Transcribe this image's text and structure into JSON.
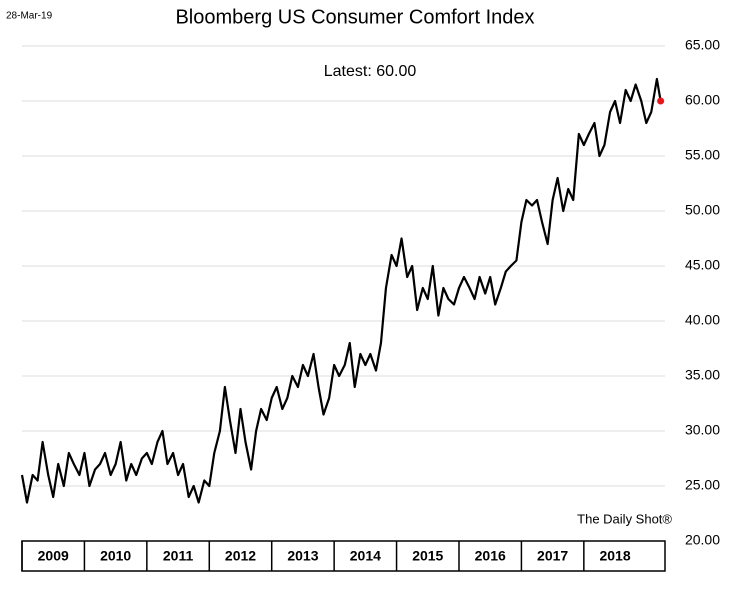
{
  "chart_data": {
    "type": "line",
    "title": "Bloomberg US Consumer Comfort Index",
    "date_label": "28-Mar-19",
    "annotation": "Latest:  60.00",
    "source": "The Daily Shot®",
    "x": [
      2009.0,
      2009.08,
      2009.17,
      2009.25,
      2009.33,
      2009.42,
      2009.5,
      2009.58,
      2009.67,
      2009.75,
      2009.83,
      2009.92,
      2010.0,
      2010.08,
      2010.17,
      2010.25,
      2010.33,
      2010.42,
      2010.5,
      2010.58,
      2010.67,
      2010.75,
      2010.83,
      2010.92,
      2011.0,
      2011.08,
      2011.17,
      2011.25,
      2011.33,
      2011.42,
      2011.5,
      2011.58,
      2011.67,
      2011.75,
      2011.83,
      2011.92,
      2012.0,
      2012.08,
      2012.17,
      2012.25,
      2012.33,
      2012.42,
      2012.5,
      2012.58,
      2012.67,
      2012.75,
      2012.83,
      2012.92,
      2013.0,
      2013.08,
      2013.17,
      2013.25,
      2013.33,
      2013.42,
      2013.5,
      2013.58,
      2013.67,
      2013.75,
      2013.83,
      2013.92,
      2014.0,
      2014.08,
      2014.17,
      2014.25,
      2014.33,
      2014.42,
      2014.5,
      2014.58,
      2014.67,
      2014.75,
      2014.83,
      2014.92,
      2015.0,
      2015.08,
      2015.17,
      2015.25,
      2015.33,
      2015.42,
      2015.5,
      2015.58,
      2015.67,
      2015.75,
      2015.83,
      2015.92,
      2016.0,
      2016.08,
      2016.17,
      2016.25,
      2016.33,
      2016.42,
      2016.5,
      2016.58,
      2016.67,
      2016.75,
      2016.83,
      2016.92,
      2017.0,
      2017.08,
      2017.17,
      2017.25,
      2017.33,
      2017.42,
      2017.5,
      2017.58,
      2017.67,
      2017.75,
      2017.83,
      2017.92,
      2018.0,
      2018.08,
      2018.17,
      2018.25,
      2018.33,
      2018.42,
      2018.5,
      2018.58,
      2018.67,
      2018.75,
      2018.83,
      2018.92,
      2019.0,
      2019.08,
      2019.17,
      2019.23
    ],
    "series": [
      {
        "color": "#000000",
        "values": [
          26,
          23.5,
          26,
          25.5,
          29,
          26,
          24,
          27,
          25,
          28,
          27,
          26,
          28,
          25,
          26.5,
          27,
          28,
          26,
          27,
          29,
          25.5,
          27,
          26,
          27.5,
          28,
          27,
          29,
          30,
          27,
          28,
          26,
          27,
          24,
          25,
          23.5,
          25.5,
          25,
          28,
          30,
          34,
          31,
          28,
          32,
          29,
          26.5,
          30,
          32,
          31,
          33,
          34,
          32,
          33,
          35,
          34,
          36,
          35,
          37,
          34,
          31.5,
          33,
          36,
          35,
          36,
          38,
          34,
          37,
          36,
          37,
          35.5,
          38,
          43,
          46,
          45,
          47.5,
          44,
          45,
          41,
          43,
          42,
          45,
          40.5,
          43,
          42,
          41.5,
          43,
          44,
          43,
          42,
          44,
          42.5,
          44,
          41.5,
          43,
          44.5,
          45,
          45.5,
          49,
          51,
          50.5,
          51,
          49,
          47,
          51,
          53,
          50,
          52,
          51,
          57,
          56,
          57,
          58,
          55,
          56,
          59,
          60,
          58,
          61,
          60,
          61.5,
          60,
          58,
          59,
          62,
          60
        ]
      }
    ],
    "latest_marker_color": "#e8141c",
    "xlim": [
      2009,
      2019.3
    ],
    "xticks": [
      {
        "value": 2009,
        "label": "2009"
      },
      {
        "value": 2010,
        "label": "2010"
      },
      {
        "value": 2011,
        "label": "2011"
      },
      {
        "value": 2012,
        "label": "2012"
      },
      {
        "value": 2013,
        "label": "2013"
      },
      {
        "value": 2014,
        "label": "2014"
      },
      {
        "value": 2015,
        "label": "2015"
      },
      {
        "value": 2016,
        "label": "2016"
      },
      {
        "value": 2017,
        "label": "2017"
      },
      {
        "value": 2018,
        "label": "2018"
      }
    ],
    "ylim": [
      20,
      65
    ],
    "yticks": [
      {
        "value": 20,
        "label": "20.00"
      },
      {
        "value": 25,
        "label": "25.00"
      },
      {
        "value": 30,
        "label": "30.00"
      },
      {
        "value": 35,
        "label": "35.00"
      },
      {
        "value": 40,
        "label": "40.00"
      },
      {
        "value": 45,
        "label": "45.00"
      },
      {
        "value": 50,
        "label": "50.00"
      },
      {
        "value": 55,
        "label": "55.00"
      },
      {
        "value": 60,
        "label": "60.00"
      },
      {
        "value": 65,
        "label": "65.00"
      }
    ],
    "grid": true
  }
}
